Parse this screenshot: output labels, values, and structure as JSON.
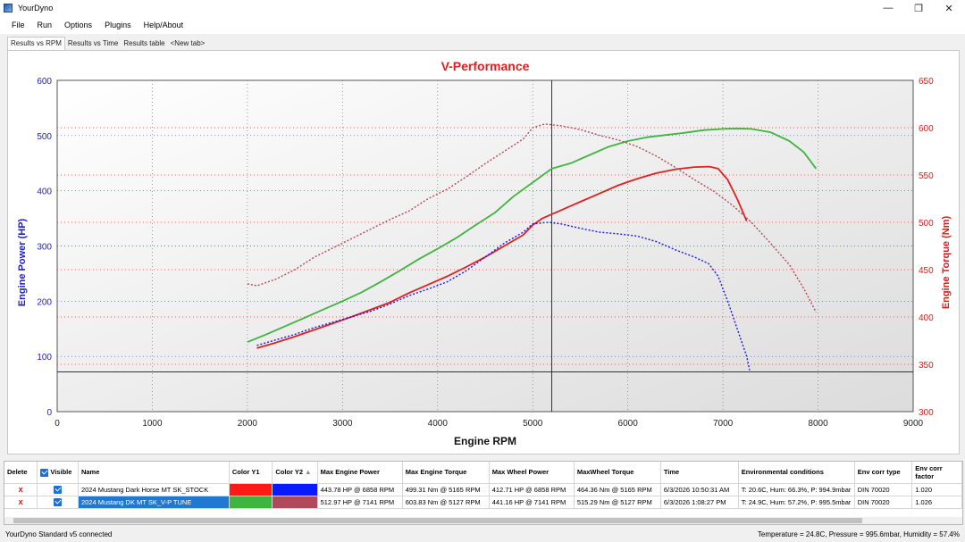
{
  "window": {
    "title": "YourDyno"
  },
  "menu": [
    "File",
    "Run",
    "Options",
    "Plugins",
    "Help/About"
  ],
  "tabs": [
    "Results vs RPM",
    "Results vs Time",
    "Results table",
    "<New tab>"
  ],
  "chart_data": {
    "type": "line",
    "title": "V-Performance",
    "xlabel": "Engine RPM",
    "ylabel": "Engine Power (HP)",
    "y2label": "Engine Torque (Nm)",
    "xlim": [
      0,
      9000
    ],
    "ylim": [
      0,
      600
    ],
    "y2lim": [
      300,
      650
    ],
    "xticks": [
      0,
      1000,
      2000,
      3000,
      4000,
      5000,
      6000,
      7000,
      8000,
      9000
    ],
    "yticks": [
      0,
      100,
      200,
      300,
      400,
      500,
      600
    ],
    "y2ticks": [
      300,
      350,
      400,
      450,
      500,
      550,
      600,
      650
    ],
    "cursor_rpm": 5200,
    "hline_hp": 72,
    "grid": true,
    "series": [
      {
        "color": "#3fb43f",
        "axis": "y1",
        "style": "solid",
        "x": [
          2000,
          2200,
          2400,
          2600,
          2800,
          3000,
          3200,
          3400,
          3600,
          3800,
          4000,
          4200,
          4400,
          4600,
          4800,
          5000,
          5200,
          5400,
          5600,
          5800,
          6000,
          6200,
          6400,
          6600,
          6800,
          7000,
          7141,
          7300,
          7500,
          7700,
          7850,
          7980
        ],
        "y": [
          126,
          140,
          155,
          170,
          185,
          200,
          216,
          235,
          255,
          276,
          295,
          315,
          338,
          360,
          390,
          415,
          440,
          450,
          465,
          480,
          490,
          497,
          501,
          505,
          510,
          512,
          512.97,
          512,
          506,
          490,
          470,
          440
        ]
      },
      {
        "color": "#e02020",
        "axis": "y1",
        "style": "solid",
        "x": [
          2100,
          2300,
          2500,
          2700,
          2900,
          3100,
          3300,
          3500,
          3700,
          3900,
          4100,
          4300,
          4500,
          4700,
          4900,
          5000,
          5100,
          5300,
          5500,
          5700,
          5900,
          6100,
          6300,
          6500,
          6700,
          6858,
          6950,
          7050,
          7150,
          7250
        ],
        "y": [
          115,
          125,
          136,
          148,
          160,
          172,
          185,
          198,
          215,
          230,
          245,
          262,
          280,
          300,
          320,
          338,
          350,
          365,
          380,
          395,
          410,
          422,
          432,
          439,
          443,
          443.78,
          440,
          420,
          385,
          345
        ]
      },
      {
        "color": "#1a1ae6",
        "axis": "y1",
        "style": "dotted",
        "x": [
          2100,
          2300,
          2500,
          2700,
          2900,
          3100,
          3300,
          3500,
          3700,
          3900,
          4100,
          4300,
          4500,
          4700,
          4900,
          5000,
          5165,
          5300,
          5500,
          5700,
          5900,
          6100,
          6300,
          6500,
          6700,
          6850,
          6950,
          7050,
          7150,
          7250,
          7280
        ],
        "y": [
          120,
          130,
          140,
          152,
          162,
          172,
          182,
          195,
          210,
          222,
          235,
          255,
          280,
          305,
          325,
          340,
          343,
          340,
          332,
          325,
          322,
          318,
          308,
          293,
          280,
          268,
          245,
          200,
          150,
          100,
          75
        ]
      },
      {
        "color": "#b04a5a",
        "axis": "y2",
        "style": "dotted",
        "x": [
          2000,
          2100,
          2300,
          2500,
          2700,
          2900,
          3100,
          3300,
          3500,
          3700,
          3900,
          4100,
          4300,
          4500,
          4700,
          4900,
          5000,
          5127,
          5300,
          5500,
          5700,
          5900,
          6100,
          6300,
          6500,
          6700,
          6900,
          7100,
          7300,
          7500,
          7700,
          7850,
          7980
        ],
        "y": [
          435,
          433,
          440,
          450,
          463,
          473,
          483,
          493,
          503,
          512,
          525,
          535,
          548,
          562,
          575,
          588,
          600,
          603.83,
          602,
          598,
          592,
          587,
          580,
          570,
          558,
          545,
          533,
          518,
          500,
          478,
          455,
          430,
          405
        ]
      }
    ]
  },
  "table": {
    "headers": {
      "delete": "Delete",
      "visible": "Visible",
      "name": "Name",
      "color_y1": "Color Y1",
      "color_y2": "Color Y2",
      "max_engine_power": "Max Engine Power",
      "max_engine_torque": "Max Engine Torque",
      "max_wheel_power": "Max Wheel Power",
      "max_wheel_torque": "MaxWheel Torque",
      "time": "Time",
      "env": "Environmental conditions",
      "env_corr_type": "Env corr type",
      "env_corr_factor": "Env corr factor"
    },
    "rows": [
      {
        "delete": "X",
        "name": "2024 Mustang Dark Horse MT SK_STOCK",
        "color_y1": "#ff1a1a",
        "color_y2": "#0a1aff",
        "max_engine_power": "443.78 HP @ 6858 RPM",
        "max_engine_torque": "499.31 Nm @ 5165 RPM",
        "max_wheel_power": "412.71 HP @ 6858 RPM",
        "max_wheel_torque": "464.36 Nm @ 5165 RPM",
        "time": "6/3/2026 10:50:31 AM",
        "env": "T: 20.6C, Hum: 66.3%, P: 994.9mbar",
        "env_corr_type": "DIN 70020",
        "env_corr_factor": "1.020"
      },
      {
        "delete": "X",
        "name": "2024 Mustang DK MT SK_V-P TUNE",
        "color_y1": "#3fb43f",
        "color_y2": "#b04a5a",
        "max_engine_power": "512.97 HP @ 7141 RPM",
        "max_engine_torque": "603.83 Nm @ 5127 RPM",
        "max_wheel_power": "441.16 HP @ 7141 RPM",
        "max_wheel_torque": "515.29 Nm @ 5127 RPM",
        "time": "6/3/2026 1:08:27 PM",
        "env": "T: 24.9C, Hum: 57.2%, P: 995.5mbar",
        "env_corr_type": "DIN 70020",
        "env_corr_factor": "1.026"
      }
    ]
  },
  "status": {
    "left": "YourDyno Standard v5 connected",
    "right": "Temperature = 24.8C, Pressure = 995.6mbar, Humidity = 57.4%"
  }
}
